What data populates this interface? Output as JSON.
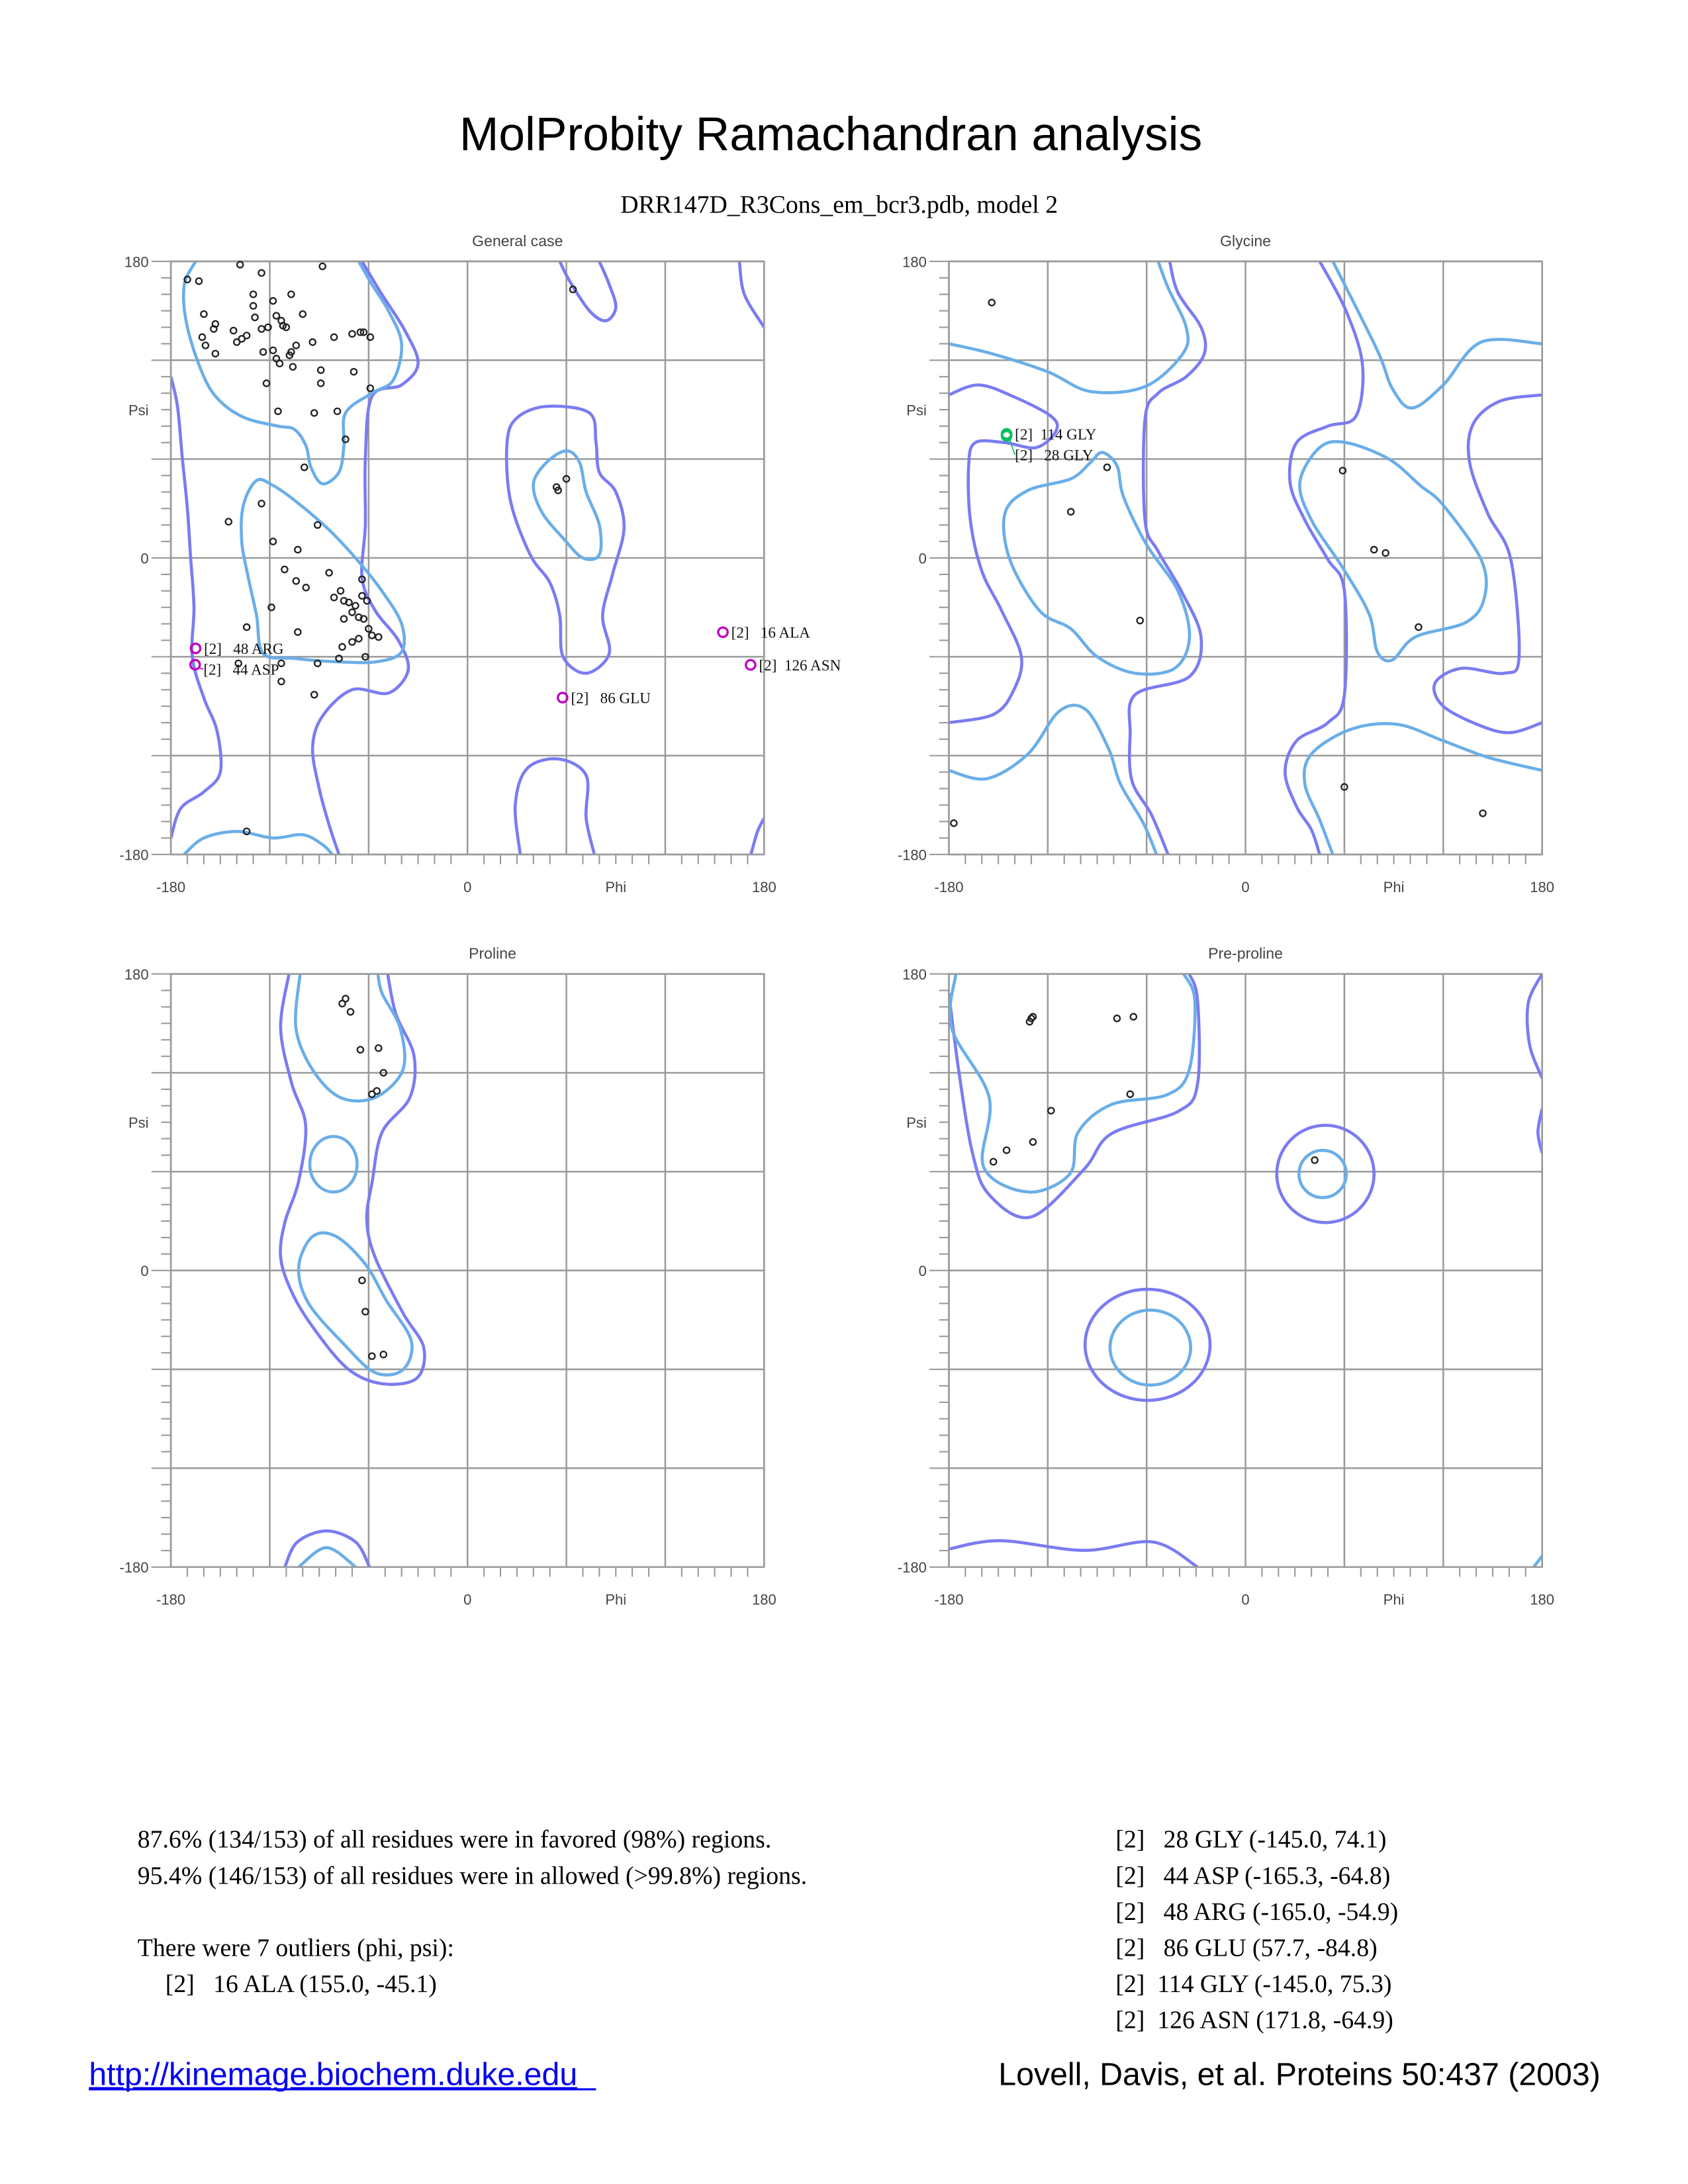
{
  "title": "MolProbity Ramachandran analysis",
  "subtitle": "DRR147D_R3Cons_em_bcr3.pdb, model 2",
  "colors": {
    "favored_contour": "#6aaee8",
    "allowed_contour": "#7b7bf2",
    "outlier": "#c000c0",
    "glycine_outlier": "#00c060",
    "point": "#222222",
    "grid": "#9a9a9a",
    "link": "#0000ee"
  },
  "chart_data": [
    {
      "type": "scatter",
      "title": "General case",
      "xlabel": "Phi",
      "ylabel": "Psi",
      "xlim": [
        -180,
        180
      ],
      "ylim": [
        -180,
        180
      ],
      "xticks": [
        "-180",
        "0",
        "180"
      ],
      "yticks": [
        "180",
        "0",
        "-180"
      ],
      "grid": true,
      "points": [
        [
          -170,
          169
        ],
        [
          -163,
          168
        ],
        [
          -138,
          178
        ],
        [
          -125,
          173
        ],
        [
          -88,
          177
        ],
        [
          -160,
          148
        ],
        [
          -153,
          142
        ],
        [
          -154,
          139
        ],
        [
          -130,
          160
        ],
        [
          -130,
          153
        ],
        [
          -118,
          156
        ],
        [
          -107,
          160
        ],
        [
          -129,
          146
        ],
        [
          -116,
          147
        ],
        [
          -113,
          144
        ],
        [
          -100,
          148
        ],
        [
          -161,
          134
        ],
        [
          -159,
          129
        ],
        [
          -140,
          131
        ],
        [
          -137,
          133
        ],
        [
          -134,
          135
        ],
        [
          -142,
          138
        ],
        [
          -125,
          139
        ],
        [
          -121,
          140
        ],
        [
          -110,
          140
        ],
        [
          -112,
          141
        ],
        [
          -81,
          134
        ],
        [
          -94,
          131
        ],
        [
          -70,
          136
        ],
        [
          -65,
          137
        ],
        [
          -63,
          137
        ],
        [
          -59,
          134
        ],
        [
          -153,
          124
        ],
        [
          -124,
          125
        ],
        [
          -118,
          126
        ],
        [
          -116,
          121
        ],
        [
          -114,
          118
        ],
        [
          -108,
          123
        ],
        [
          -107,
          125
        ],
        [
          -104,
          129
        ],
        [
          -122,
          106
        ],
        [
          -106,
          116
        ],
        [
          -89,
          114
        ],
        [
          -89,
          106
        ],
        [
          -69,
          113
        ],
        [
          -59,
          103
        ],
        [
          -115,
          89
        ],
        [
          -93,
          88
        ],
        [
          -79,
          89
        ],
        [
          -74,
          72
        ],
        [
          -99,
          55
        ],
        [
          -125,
          33
        ],
        [
          -145,
          22
        ],
        [
          -91,
          20
        ],
        [
          -118,
          10
        ],
        [
          -103,
          5
        ],
        [
          -111,
          -7
        ],
        [
          -104,
          -14
        ],
        [
          -98,
          -18
        ],
        [
          -84,
          -9
        ],
        [
          -64,
          -13
        ],
        [
          -77,
          -20
        ],
        [
          -81,
          -24
        ],
        [
          -75,
          -26
        ],
        [
          -72,
          -27
        ],
        [
          -68,
          -29
        ],
        [
          -64,
          -23
        ],
        [
          -61,
          -26
        ],
        [
          -70,
          -33
        ],
        [
          -75,
          -37
        ],
        [
          -66,
          -36
        ],
        [
          -63,
          -37
        ],
        [
          -60,
          -43
        ],
        [
          -58,
          -47
        ],
        [
          -66,
          -49
        ],
        [
          -54,
          -48
        ],
        [
          -119,
          -30
        ],
        [
          -134,
          -42
        ],
        [
          -103,
          -45
        ],
        [
          -76,
          -54
        ],
        [
          -70,
          -51
        ],
        [
          -113,
          -64
        ],
        [
          -139,
          -64
        ],
        [
          -91,
          -64
        ],
        [
          -78,
          -61
        ],
        [
          -62,
          -60
        ],
        [
          -113,
          -75
        ],
        [
          -93,
          -83
        ],
        [
          -134,
          -166
        ],
        [
          64,
          163
        ],
        [
          54,
          43
        ],
        [
          55,
          41
        ],
        [
          60,
          48
        ]
      ],
      "outliers": [
        {
          "label": "[2]   16 ALA",
          "phi": 155.0,
          "psi": -45.1
        },
        {
          "label": "[2]  126 ASN",
          "phi": 171.8,
          "psi": -64.9
        },
        {
          "label": "[2]   86 GLU",
          "phi": 57.7,
          "psi": -84.8
        },
        {
          "label": "[2]   48 ARG",
          "phi": -165.0,
          "psi": -54.9
        },
        {
          "label": "[2]   44 ASP",
          "phi": -165.3,
          "psi": -64.8
        }
      ]
    },
    {
      "type": "scatter",
      "title": "Glycine",
      "xlabel": "Phi",
      "ylabel": "Psi",
      "xlim": [
        -180,
        180
      ],
      "ylim": [
        -180,
        180
      ],
      "xticks": [
        "-180",
        "0",
        "180"
      ],
      "yticks": [
        "180",
        "0",
        "-180"
      ],
      "grid": true,
      "points": [
        [
          -154,
          155
        ],
        [
          -106,
          28
        ],
        [
          -84,
          55
        ],
        [
          -64,
          -38
        ],
        [
          59,
          53
        ],
        [
          78,
          5
        ],
        [
          85,
          3
        ],
        [
          105,
          -42
        ],
        [
          60,
          -139
        ],
        [
          144,
          -155
        ],
        [
          -177,
          -161
        ]
      ],
      "outliers": [
        {
          "label": "[2]   28 GLY",
          "phi": -145.0,
          "psi": 74.1
        },
        {
          "label": "[2]  114 GLY",
          "phi": -145.0,
          "psi": 75.3
        }
      ]
    },
    {
      "type": "scatter",
      "title": "Proline",
      "xlabel": "Phi",
      "ylabel": "Psi",
      "xlim": [
        -180,
        180
      ],
      "ylim": [
        -180,
        180
      ],
      "xticks": [
        "-180",
        "0",
        "180"
      ],
      "yticks": [
        "180",
        "0",
        "-180"
      ],
      "grid": true,
      "points": [
        [
          -76,
          162
        ],
        [
          -74,
          165
        ],
        [
          -71,
          157
        ],
        [
          -65,
          134
        ],
        [
          -54,
          135
        ],
        [
          -51,
          120
        ],
        [
          -58,
          107
        ],
        [
          -55,
          109
        ],
        [
          -64,
          -6
        ],
        [
          -62,
          -25
        ],
        [
          -58,
          -52
        ],
        [
          -51,
          -51
        ]
      ],
      "outliers": []
    },
    {
      "type": "scatter",
      "title": "Pre-proline",
      "xlabel": "Phi",
      "ylabel": "Psi",
      "xlim": [
        -180,
        180
      ],
      "ylim": [
        -180,
        180
      ],
      "xticks": [
        "-180",
        "0",
        "180"
      ],
      "yticks": [
        "180",
        "0",
        "-180"
      ],
      "grid": true,
      "points": [
        [
          -131,
          151
        ],
        [
          -130,
          153
        ],
        [
          -129,
          154
        ],
        [
          -78,
          153
        ],
        [
          -68,
          154
        ],
        [
          -118,
          97
        ],
        [
          -129,
          78
        ],
        [
          -145,
          73
        ],
        [
          -153,
          66
        ],
        [
          -70,
          107
        ],
        [
          42,
          67
        ]
      ],
      "outliers": []
    }
  ],
  "summary": {
    "favored": "87.6% (134/153) of all residues were in favored (98%) regions.",
    "allowed": "95.4% (146/153) of all residues were in allowed (>99.8%) regions.",
    "outliers_heading": "There were 7 outliers (phi, psi):",
    "outlier_list": [
      "[2]   16 ALA (155.0, -45.1)",
      "[2]   28 GLY (-145.0, 74.1)",
      "[2]   44 ASP (-165.3, -64.8)",
      "[2]   48 ARG (-165.0, -54.9)",
      "[2]   86 GLU (57.7, -84.8)",
      "[2]  114 GLY (-145.0, 75.3)",
      "[2]  126 ASN (171.8, -64.9)"
    ]
  },
  "footer": {
    "link": "http://kinemage.biochem.duke.edu",
    "citation": "Lovell, Davis, et al. Proteins 50:437 (2003)"
  }
}
